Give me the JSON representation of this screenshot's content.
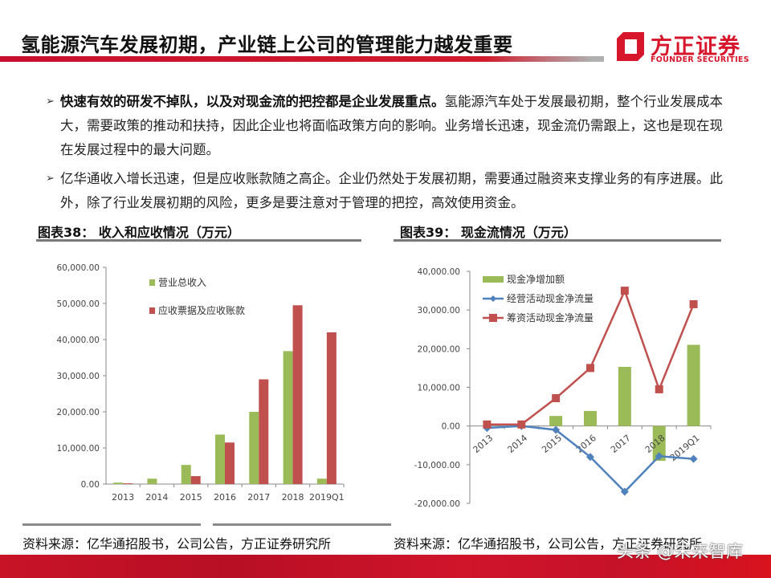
{
  "header": {
    "title": "氢能源汽车发展初期，产业链上公司的管理能力越发重要",
    "logo_cn": "方正证券",
    "logo_en": "FOUNDER SECURITIES",
    "accent_color": "#d7152b"
  },
  "bullets": [
    {
      "bold": "快速有效的研发不掉队，以及对现金流的把控都是企业发展重点。",
      "text": "氢能源汽车处于发展最初期，整个行业发展成本大，需要政策的推动和扶持，因此企业也将面临政策方向的影响。业务增长迅速，现金流仍需跟上，这也是现在现在发展过程中的最大问题。"
    },
    {
      "bold": "",
      "text": "亿华通收入增长迅速，但是应收账款随之高企。企业仍然处于发展初期，需要通过融资来支撑业务的有序进展。此外，除了行业发展初期的风险，更多是要注意对于管理的把控，高效使用资金。"
    }
  ],
  "figures": [
    {
      "title": "图表38： 收入和应收情况（万元）",
      "source": "资料来源：亿华通招股书，公司公告，方正证券研究所"
    },
    {
      "title": "图表39： 现金流情况（万元）",
      "source": "资料来源：亿华通招股书，公司公告，方正证券研究所"
    }
  ],
  "watermark": "头条 @未来智库",
  "chart_data": [
    {
      "type": "bar",
      "title": "图表38： 收入和应收情况（万元）",
      "categories": [
        "2013",
        "2014",
        "2015",
        "2016",
        "2017",
        "2018",
        "2019Q1"
      ],
      "series": [
        {
          "name": "营业总收入",
          "color": "#9bbb59",
          "values": [
            400,
            1500,
            5300,
            13700,
            20000,
            36800,
            1500
          ]
        },
        {
          "name": "应收票据及应收账款",
          "color": "#c0504d",
          "values": [
            200,
            0,
            2200,
            11500,
            29000,
            49500,
            42000
          ]
        }
      ],
      "yticks": [
        "60,000.00",
        "50,000.00",
        "40,000.00",
        "30,000.00",
        "20,000.00",
        "10,000.00",
        "0.00"
      ],
      "ylim": [
        0,
        60000
      ],
      "xlabel": "",
      "ylabel": "",
      "legend_position": "top-left inside",
      "grid": false
    },
    {
      "type": "bar+line",
      "title": "图表39： 现金流情况（万元）",
      "categories": [
        "2013",
        "2014",
        "2015",
        "2016",
        "2017",
        "2018",
        "2019Q1"
      ],
      "series": [
        {
          "name": "现金净增加额",
          "type": "bar",
          "color": "#9bbb59",
          "values": [
            0,
            0,
            2600,
            3900,
            15300,
            -9000,
            21000
          ]
        },
        {
          "name": "经营活动现金净流量",
          "type": "line",
          "marker": "diamond",
          "color": "#4f81bd",
          "values": [
            -500,
            0,
            -1000,
            -8000,
            -17000,
            -7800,
            -8500
          ]
        },
        {
          "name": "筹资活动现金净流量",
          "type": "line",
          "marker": "square",
          "color": "#c0504d",
          "values": [
            400,
            400,
            7200,
            15000,
            35000,
            9500,
            31500
          ]
        }
      ],
      "yticks": [
        "40,000.00",
        "30,000.00",
        "20,000.00",
        "10,000.00",
        "0.00",
        "-10,000.00",
        "-20,000.00"
      ],
      "ylim": [
        -20000,
        40000
      ],
      "xlabel": "",
      "ylabel": "",
      "legend_position": "top-left inside",
      "grid": false
    }
  ]
}
